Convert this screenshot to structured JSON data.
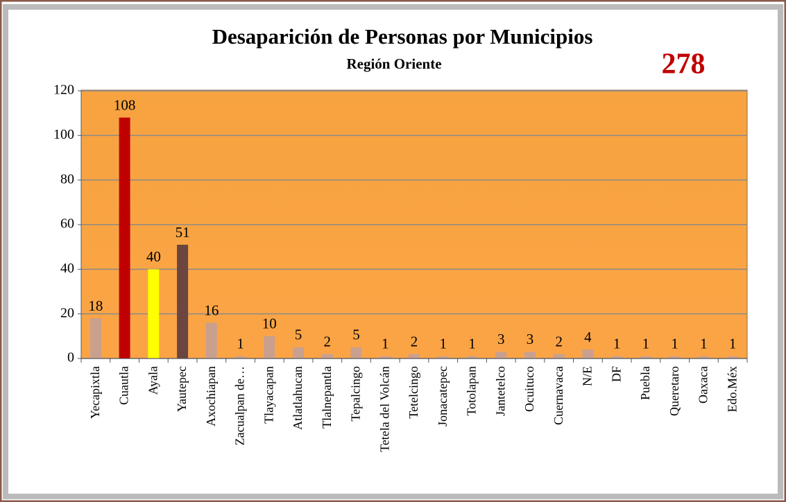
{
  "chart_data": {
    "type": "bar",
    "title": "Desaparición de Personas por Municipios",
    "subtitle": "Región Oriente",
    "annotation": "278",
    "categories": [
      "Yecapixtla",
      "Cuautla",
      "Ayala",
      "Yautepec",
      "Axochiapan",
      "Zacualpan  de…",
      "Tlayacapan",
      "Atlatlahucan",
      "Tlalnepantla",
      "Tepalcingo",
      "Tetela del Volcán",
      "Tetelcingo",
      "Jonacatepec",
      "Totolapan",
      "Jantetelco",
      "Ocuituco",
      "Cuernavaca",
      "N/E",
      "DF",
      "Puebla",
      "Queretaro",
      "Oaxaca",
      "Edo.Méx"
    ],
    "values": [
      18,
      108,
      40,
      51,
      16,
      1,
      10,
      5,
      2,
      5,
      1,
      2,
      1,
      1,
      3,
      3,
      2,
      4,
      1,
      1,
      1,
      1,
      1
    ],
    "colors": [
      "#c9a08e",
      "#c00000",
      "#ffff00",
      "#6b4540",
      "#c9a08e",
      "#c9a08e",
      "#c9a08e",
      "#c9a08e",
      "#c9a08e",
      "#c9a08e",
      "#c9a08e",
      "#c9a08e",
      "#c9a08e",
      "#c9a08e",
      "#c9a08e",
      "#c9a08e",
      "#c9a08e",
      "#c9a08e",
      "#c9a08e",
      "#c9a08e",
      "#c9a08e",
      "#c9a08e",
      "#c9a08e"
    ],
    "ylim": [
      0,
      120
    ],
    "yticks": [
      0,
      20,
      40,
      60,
      80,
      100,
      120
    ],
    "grid": true
  }
}
